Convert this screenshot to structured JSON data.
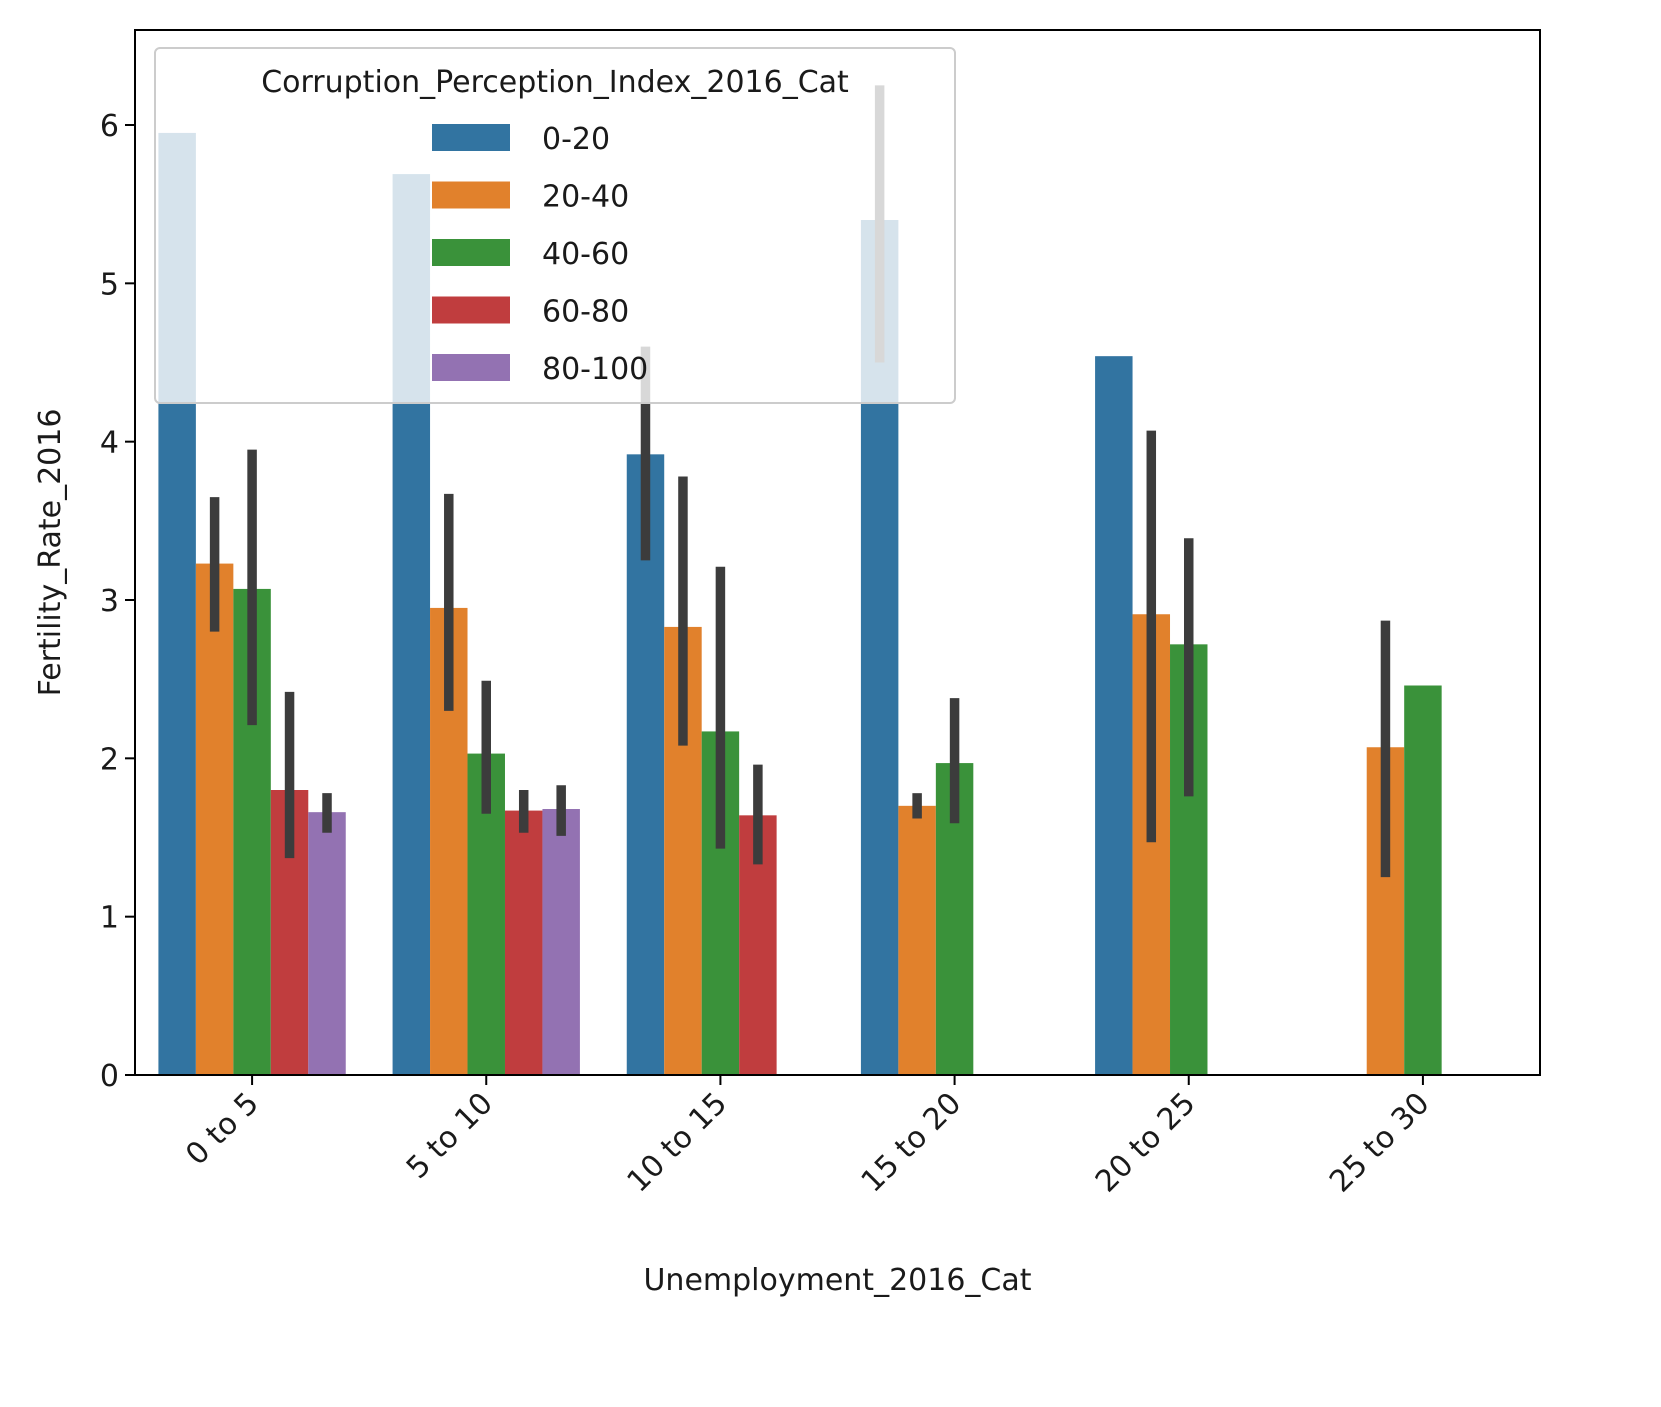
{
  "chart_data": {
    "type": "bar",
    "xlabel": "Unemployment_2016_Cat",
    "ylabel": "Fertility_Rate_2016",
    "categories": [
      "0 to 5",
      "5 to 10",
      "10 to 15",
      "15 to 20",
      "20 to 25",
      "25 to 30"
    ],
    "ylim": [
      0,
      6.6
    ],
    "yticks": [
      "0",
      "1",
      "2",
      "3",
      "4",
      "5",
      "6"
    ],
    "grid": false,
    "legend": {
      "title": "Corruption_Perception_Index_2016_Cat",
      "placement": "upper-left"
    },
    "series": [
      {
        "name": "0-20",
        "color": "#3274a1",
        "values": [
          5.95,
          5.69,
          3.92,
          5.4,
          4.54,
          null
        ],
        "err_low": [
          null,
          null,
          3.25,
          4.5,
          null,
          null
        ],
        "err_high": [
          null,
          null,
          4.6,
          6.25,
          null,
          null
        ]
      },
      {
        "name": "20-40",
        "color": "#e1812c",
        "values": [
          3.23,
          2.95,
          2.83,
          1.7,
          2.91,
          2.07
        ],
        "err_low": [
          2.8,
          2.3,
          2.08,
          1.62,
          1.47,
          1.25
        ],
        "err_high": [
          3.65,
          3.67,
          3.78,
          1.78,
          4.07,
          2.87
        ]
      },
      {
        "name": "40-60",
        "color": "#3a923a",
        "values": [
          3.07,
          2.03,
          2.17,
          1.97,
          2.72,
          2.46
        ],
        "err_low": [
          2.21,
          1.65,
          1.43,
          1.59,
          1.76,
          null
        ],
        "err_high": [
          3.95,
          2.49,
          3.21,
          2.38,
          3.39,
          null
        ]
      },
      {
        "name": "60-80",
        "color": "#c03d3e",
        "values": [
          1.8,
          1.67,
          1.64,
          null,
          null,
          null
        ],
        "err_low": [
          1.37,
          1.53,
          1.33,
          null,
          null,
          null
        ],
        "err_high": [
          2.42,
          1.8,
          1.96,
          null,
          null,
          null
        ]
      },
      {
        "name": "80-100",
        "color": "#9372b2",
        "values": [
          1.66,
          1.68,
          null,
          null,
          null,
          null
        ],
        "err_low": [
          1.53,
          1.51,
          null,
          null,
          null,
          null
        ],
        "err_high": [
          1.78,
          1.83,
          null,
          null,
          null,
          null
        ]
      }
    ]
  }
}
